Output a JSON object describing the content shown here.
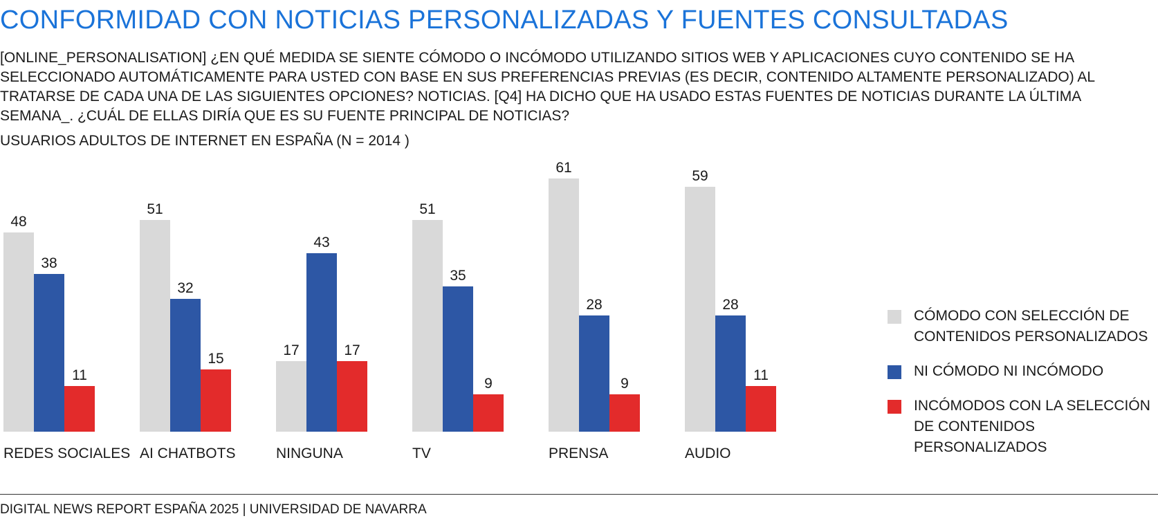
{
  "title": "CONFORMIDAD CON NOTICIAS PERSONALIZADAS Y FUENTES CONSULTADAS",
  "subtitle": "[ONLINE_PERSONALISATION] ¿EN QUÉ MEDIDA SE SIENTE CÓMODO O INCÓMODO UTILIZANDO SITIOS WEB Y APLICACIONES CUYO CONTENIDO SE HA SELECCIONADO AUTOMÁTICAMENTE PARA USTED CON BASE EN SUS PREFERENCIAS PREVIAS (ES DECIR, CONTENIDO ALTAMENTE PERSONALIZADO) AL TRATARSE DE CADA UNA DE LAS SIGUIENTES OPCIONES? NOTICIAS. [Q4] HA DICHO QUE HA USADO ESTAS FUENTES DE NOTICIAS DURANTE LA ÚLTIMA SEMANA_. ¿CUÁL DE ELLAS DIRÍA QUE ES SU FUENTE PRINCIPAL DE NOTICIAS?",
  "sample_note": "USUARIOS ADULTOS DE INTERNET EN ESPAÑA (N = 2014 )",
  "footer": "DIGITAL NEWS REPORT ESPAÑA 2025 | UNIVERSIDAD DE NAVARRA",
  "chart_data": {
    "type": "bar",
    "categories": [
      "REDES SOCIALES",
      "AI CHATBOTS",
      "NINGUNA",
      "TV",
      "PRENSA",
      "AUDIO"
    ],
    "series": [
      {
        "name": "CÓMODO CON SELECCIÓN DE CONTENIDOS PERSONALIZADOS",
        "color": "#d9d9d9",
        "values": [
          48,
          51,
          17,
          51,
          61,
          59
        ]
      },
      {
        "name": "NI CÓMODO NI INCÓMODO",
        "color": "#2d57a5",
        "values": [
          38,
          32,
          43,
          35,
          28,
          28
        ]
      },
      {
        "name": "INCÓMODOS CON LA SELECCIÓN DE CONTENIDOS PERSONALIZADOS",
        "color": "#e32b2b",
        "values": [
          11,
          15,
          17,
          9,
          9,
          11
        ]
      }
    ],
    "ylim": [
      0,
      61
    ],
    "legend_position": "right",
    "grid": false
  }
}
